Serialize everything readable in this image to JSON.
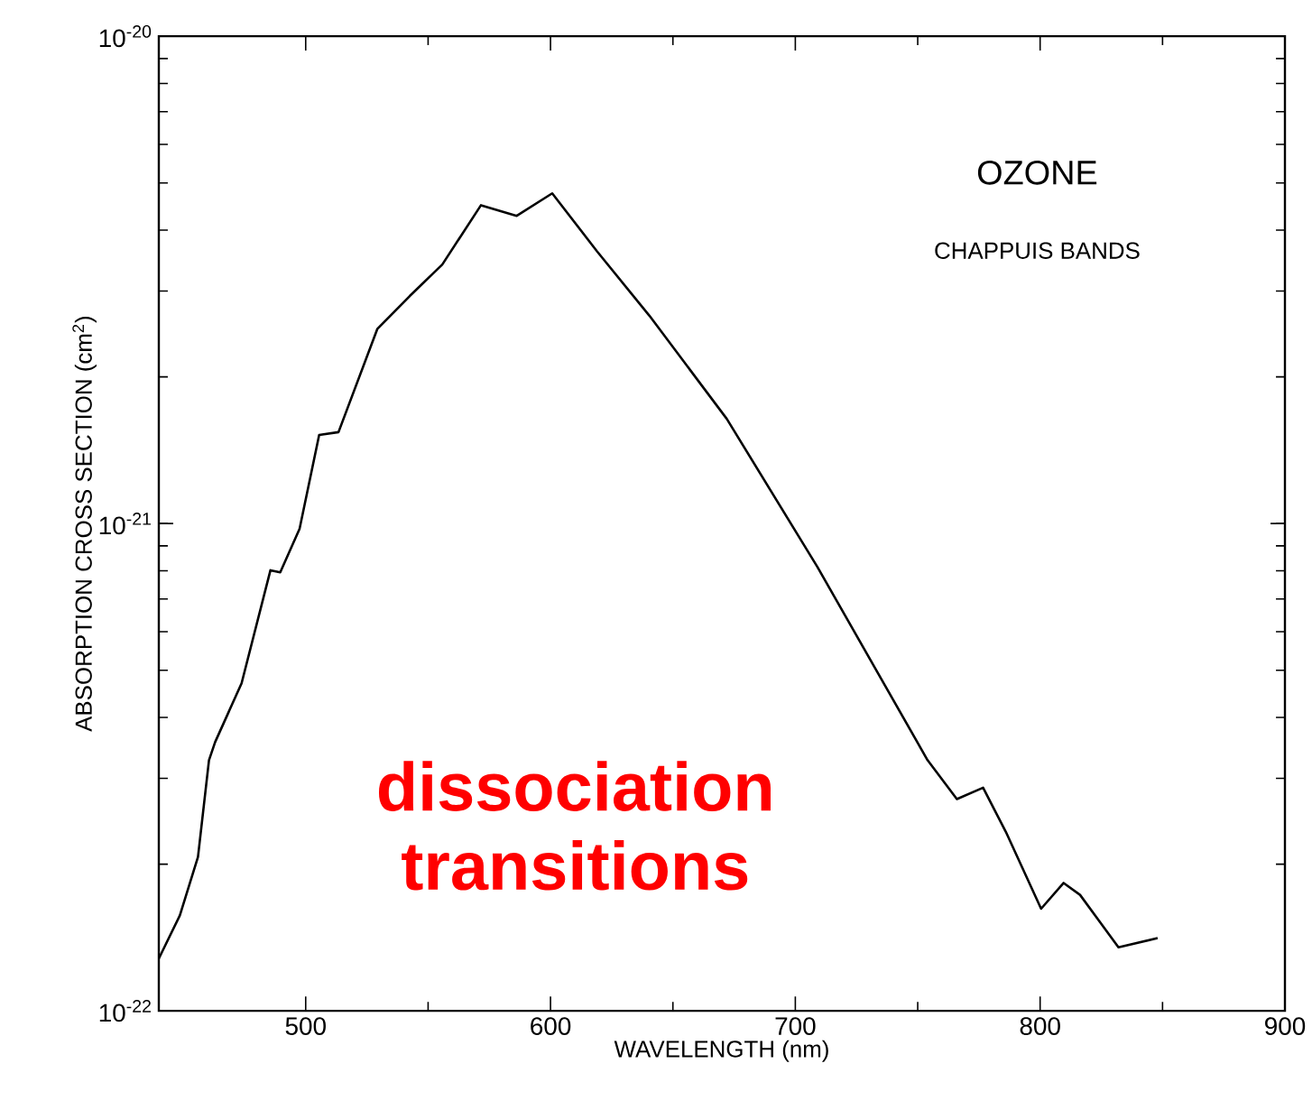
{
  "chart_data": {
    "type": "line",
    "title": "OZONE",
    "subtitle": "CHAPPUIS BANDS",
    "xlabel": "WAVELENGTH (nm)",
    "ylabel": "ABSORPTION CROSS SECTION (cm$^{2}$)",
    "annotations": [
      "dissociation transitions"
    ],
    "x": [
      440,
      448.6,
      456,
      460.5,
      463,
      473.8,
      485.6,
      489.6,
      497.5,
      505.5,
      513.4,
      529.3,
      542.5,
      555.8,
      571.6,
      586.2,
      600.7,
      619,
      640.4,
      672,
      709,
      754,
      766,
      776.7,
      786,
      800.4,
      809.6,
      816.3,
      832,
      848
    ],
    "series": [
      {
        "color": "#000000",
        "values": [
          1.28e-22,
          1.57e-22,
          2.07e-22,
          3.27e-22,
          3.56e-22,
          4.7e-22,
          8.02e-22,
          7.94e-22,
          9.75e-22,
          1.52e-21,
          1.54e-21,
          2.51e-21,
          2.93e-21,
          3.4e-21,
          4.5e-21,
          4.28e-21,
          4.76e-21,
          3.62e-21,
          2.67e-21,
          1.64e-21,
          8.15e-22,
          3.27e-22,
          2.72e-22,
          2.87e-22,
          2.33e-22,
          1.62e-22,
          1.83e-22,
          1.73e-22,
          1.35e-22,
          1.41e-22
        ]
      }
    ],
    "xlim": [
      440,
      900
    ],
    "xticks": [
      500,
      600,
      700,
      800,
      900
    ],
    "ylim": [
      1e-22,
      1e-20
    ],
    "yticks": [
      {
        "value": 1e-22,
        "label": "10$^{-22}$"
      },
      {
        "value": 1e-21,
        "label": "10$^{-21}$"
      },
      {
        "value": 1e-20,
        "label": "10$^{-20}$"
      }
    ],
    "log": "y",
    "grid": false,
    "marker": "none",
    "line_style": "solid"
  }
}
